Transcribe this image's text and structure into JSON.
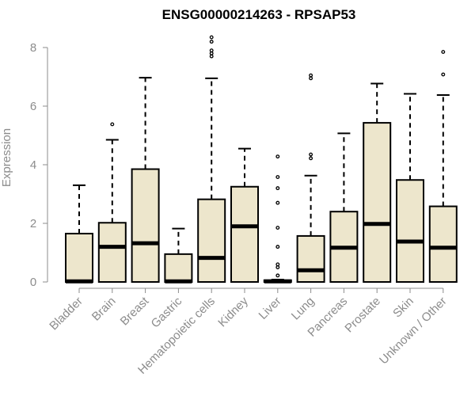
{
  "chart_data": {
    "type": "boxplot",
    "title": "ENSG00000214263 - RPSAP53",
    "xlabel": "",
    "ylabel": "Expression",
    "ylim": [
      0,
      8.4
    ],
    "yticks": [
      0,
      2,
      4,
      6,
      8
    ],
    "tick_labels": [
      "0",
      "2",
      "4",
      "6",
      "8"
    ],
    "grid": false,
    "colors": {
      "box_fill": "#ede6cc",
      "stroke": "#000000",
      "axis": "#8c8c8c"
    },
    "categories": [
      "Bladder",
      "Brain",
      "Breast",
      "Gastric",
      "Hematopoietic cells",
      "Kidney",
      "Liver",
      "Lung",
      "Pancreas",
      "Prostate",
      "Skin",
      "Unknown / Other"
    ],
    "boxes": [
      {
        "name": "Bladder",
        "min": 0,
        "q1": 0,
        "median": 0.02,
        "q3": 1.65,
        "max": 3.3,
        "outliers": []
      },
      {
        "name": "Brain",
        "min": 0,
        "q1": 0,
        "median": 1.2,
        "q3": 2.02,
        "max": 4.85,
        "outliers": [
          5.38
        ]
      },
      {
        "name": "Breast",
        "min": 0,
        "q1": 0,
        "median": 1.32,
        "q3": 3.85,
        "max": 6.97,
        "outliers": []
      },
      {
        "name": "Gastric",
        "min": 0,
        "q1": 0,
        "median": 0.02,
        "q3": 0.95,
        "max": 1.82,
        "outliers": []
      },
      {
        "name": "Hematopoietic cells",
        "min": 0,
        "q1": 0,
        "median": 0.82,
        "q3": 2.82,
        "max": 6.95,
        "outliers": [
          7.7,
          7.8,
          7.9,
          8.2,
          8.35
        ]
      },
      {
        "name": "Kidney",
        "min": 0,
        "q1": 0,
        "median": 1.9,
        "q3": 3.25,
        "max": 4.55,
        "outliers": []
      },
      {
        "name": "Liver",
        "min": 0,
        "q1": 0,
        "median": 0.02,
        "q3": 0.06,
        "max": 0.08,
        "outliers": [
          0.22,
          0.5,
          0.6,
          1.2,
          1.85,
          2.7,
          3.2,
          3.58,
          4.28
        ]
      },
      {
        "name": "Lung",
        "min": 0,
        "q1": 0,
        "median": 0.4,
        "q3": 1.57,
        "max": 3.63,
        "outliers": [
          4.22,
          4.35,
          6.95,
          7.05
        ]
      },
      {
        "name": "Pancreas",
        "min": 0,
        "q1": 0,
        "median": 1.17,
        "q3": 2.4,
        "max": 5.07,
        "outliers": []
      },
      {
        "name": "Prostate",
        "min": 0,
        "q1": 0,
        "median": 1.98,
        "q3": 5.43,
        "max": 6.77,
        "outliers": []
      },
      {
        "name": "Skin",
        "min": 0,
        "q1": 0,
        "median": 1.38,
        "q3": 3.48,
        "max": 6.42,
        "outliers": []
      },
      {
        "name": "Unknown / Other",
        "min": 0,
        "q1": 0,
        "median": 1.17,
        "q3": 2.58,
        "max": 6.38,
        "outliers": [
          7.08,
          7.85
        ]
      }
    ]
  }
}
